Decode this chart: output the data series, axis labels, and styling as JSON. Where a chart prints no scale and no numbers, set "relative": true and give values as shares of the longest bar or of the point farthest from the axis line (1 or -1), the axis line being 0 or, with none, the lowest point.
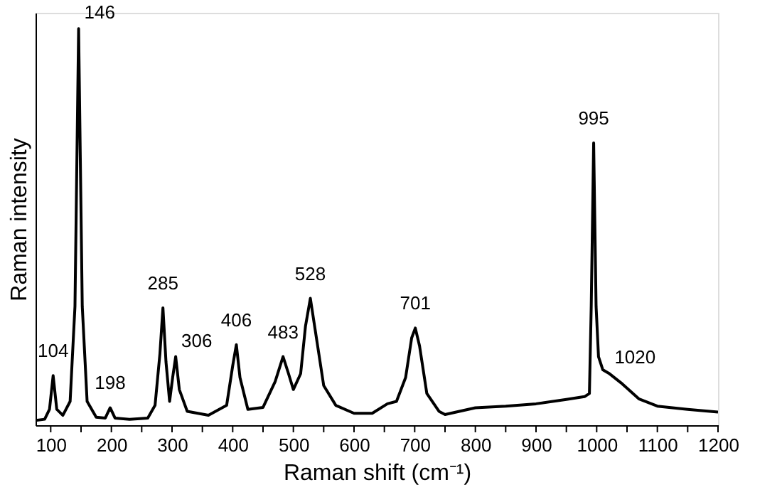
{
  "chart_data": {
    "type": "line",
    "relative": true,
    "xlabel": "Raman shift (cm⁻¹)",
    "ylabel": "Raman intensity",
    "xlim": [
      75,
      1200
    ],
    "xticks": [
      100,
      {
        "value": 150,
        "label": null
      },
      200,
      {
        "value": 250,
        "label": null
      },
      300,
      {
        "value": 350,
        "label": null
      },
      400,
      {
        "value": 450,
        "label": null
      },
      500,
      {
        "value": 550,
        "label": null
      },
      600,
      {
        "value": 650,
        "label": null
      },
      700,
      {
        "value": 750,
        "label": null
      },
      800,
      {
        "value": 850,
        "label": null
      },
      900,
      {
        "value": 950,
        "label": null
      },
      1000,
      {
        "value": 1050,
        "label": null
      },
      1100,
      {
        "value": 1150,
        "label": null
      },
      1200
    ],
    "grid": false,
    "legend": false,
    "marker": "none",
    "line_style": "solid",
    "x": [
      75,
      90,
      98,
      104,
      110,
      120,
      132,
      140,
      146,
      152,
      160,
      175,
      190,
      198,
      206,
      230,
      260,
      272,
      280,
      285,
      290,
      296,
      301,
      306,
      312,
      325,
      360,
      390,
      400,
      406,
      412,
      425,
      450,
      470,
      483,
      492,
      500,
      512,
      520,
      528,
      536,
      550,
      570,
      600,
      630,
      655,
      670,
      685,
      695,
      701,
      708,
      720,
      740,
      750,
      800,
      850,
      900,
      950,
      980,
      988,
      991,
      995,
      999,
      1003,
      1010,
      1020,
      1040,
      1070,
      1100,
      1150,
      1200
    ],
    "series": [
      {
        "color": "#000000",
        "values": [
          0.012,
          0.015,
          0.04,
          0.125,
          0.04,
          0.025,
          0.06,
          0.3,
          1.0,
          0.3,
          0.06,
          0.02,
          0.018,
          0.044,
          0.018,
          0.015,
          0.018,
          0.05,
          0.18,
          0.296,
          0.16,
          0.06,
          0.12,
          0.173,
          0.09,
          0.035,
          0.025,
          0.05,
          0.15,
          0.203,
          0.12,
          0.04,
          0.045,
          0.11,
          0.173,
          0.13,
          0.09,
          0.13,
          0.25,
          0.32,
          0.24,
          0.1,
          0.05,
          0.03,
          0.03,
          0.054,
          0.06,
          0.12,
          0.22,
          0.245,
          0.2,
          0.08,
          0.035,
          0.027,
          0.044,
          0.048,
          0.054,
          0.065,
          0.072,
          0.08,
          0.3,
          0.712,
          0.3,
          0.173,
          0.14,
          0.131,
          0.107,
          0.066,
          0.048,
          0.04,
          0.033
        ]
      }
    ],
    "annotations": [
      {
        "text": "104",
        "x": 104,
        "y": 0.125
      },
      {
        "text": "146",
        "x": 146,
        "y": 1.0
      },
      {
        "text": "198",
        "x": 198,
        "y": 0.044
      },
      {
        "text": "285",
        "x": 285,
        "y": 0.296
      },
      {
        "text": "306",
        "x": 306,
        "y": 0.173
      },
      {
        "text": "406",
        "x": 406,
        "y": 0.203
      },
      {
        "text": "483",
        "x": 483,
        "y": 0.173
      },
      {
        "text": "528",
        "x": 528,
        "y": 0.32
      },
      {
        "text": "701",
        "x": 701,
        "y": 0.245
      },
      {
        "text": "995",
        "x": 995,
        "y": 0.712
      },
      {
        "text": "1020",
        "x": 1020,
        "y": 0.131
      }
    ]
  }
}
